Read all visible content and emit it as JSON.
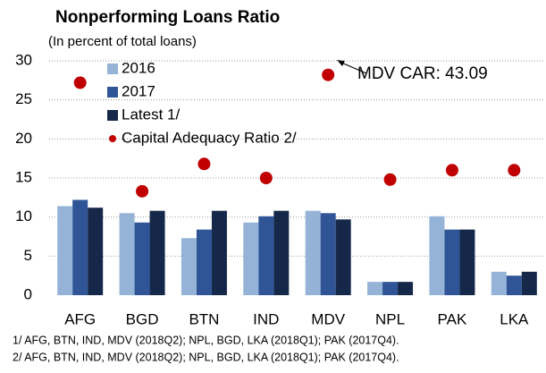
{
  "chart_data": {
    "type": "bar",
    "title": "Nonperforming Loans Ratio",
    "subtitle": "(In percent of total loans)",
    "categories": [
      "AFG",
      "BGD",
      "BTN",
      "IND",
      "MDV",
      "NPL",
      "PAK",
      "LKA"
    ],
    "series": [
      {
        "name": "2016",
        "color": "#95b3d7",
        "values": [
          11.4,
          10.5,
          7.3,
          9.3,
          10.8,
          1.7,
          10.1,
          3.0
        ]
      },
      {
        "name": "2017",
        "color": "#2f5597",
        "values": [
          12.2,
          9.3,
          8.4,
          10.1,
          10.5,
          1.7,
          8.4,
          2.5
        ]
      },
      {
        "name": "Latest 1/",
        "color": "#16284a",
        "values": [
          11.2,
          10.8,
          10.8,
          10.8,
          9.7,
          1.7,
          8.4,
          3.0
        ]
      },
      {
        "name": "Capital Adequacy Ratio 2/",
        "color": "#c00000",
        "type": "scatter",
        "values": [
          27.2,
          13.3,
          16.8,
          15.0,
          28.2,
          14.8,
          16.0,
          16.0
        ]
      }
    ],
    "ylim": [
      0,
      30
    ],
    "yticks": [
      0,
      5,
      10,
      15,
      20,
      25,
      30
    ],
    "grid": true,
    "legend": "top-left",
    "annotations": [
      {
        "text": "MDV CAR: 43.09"
      }
    ],
    "notes": [
      "1/ AFG, BTN, IND, MDV (2018Q2); NPL, BGD, LKA (2018Q1); PAK (2017Q4).",
      "2/ AFG, BTN, IND, MDV (2018Q2); NPL, BGD, LKA (2018Q1); PAK (2017Q4)."
    ]
  }
}
